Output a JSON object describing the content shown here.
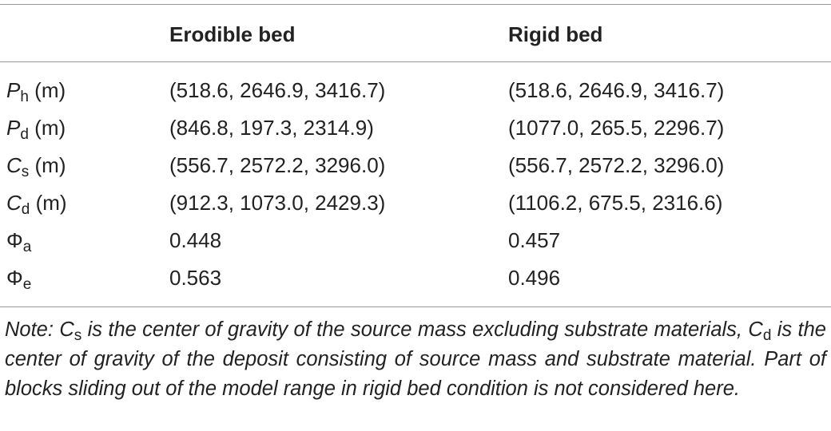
{
  "table": {
    "header": [
      "Erodible bed",
      "Rigid bed"
    ],
    "rows": [
      {
        "label": {
          "symbol": "P",
          "sub": "h",
          "unit": "(m)",
          "italic": true
        },
        "cells": [
          "(518.6, 2646.9, 3416.7)",
          "(518.6, 2646.9, 3416.7)"
        ]
      },
      {
        "label": {
          "symbol": "P",
          "sub": "d",
          "unit": "(m)",
          "italic": true
        },
        "cells": [
          "(846.8, 197.3, 2314.9)",
          "(1077.0, 265.5, 2296.7)"
        ]
      },
      {
        "label": {
          "symbol": "C",
          "sub": "s",
          "unit": "(m)",
          "italic": true
        },
        "cells": [
          "(556.7, 2572.2, 3296.0)",
          "(556.7, 2572.2, 3296.0)"
        ]
      },
      {
        "label": {
          "symbol": "C",
          "sub": "d",
          "unit": "(m)",
          "italic": true
        },
        "cells": [
          "(912.3, 1073.0, 2429.3)",
          "(1106.2, 675.5, 2316.6)"
        ]
      },
      {
        "label": {
          "symbol": "Φ",
          "sub": "a",
          "italic": false
        },
        "cells": [
          "0.448",
          "0.457"
        ]
      },
      {
        "label": {
          "symbol": "Φ",
          "sub": "e",
          "italic": false
        },
        "cells": [
          "0.563",
          "0.496"
        ]
      }
    ]
  },
  "note": [
    {
      "text": "Note: "
    },
    {
      "text": "C",
      "sub": "s"
    },
    {
      "text": " is the center of gravity of the source mass excluding substrate materials, "
    },
    {
      "text": "C",
      "sub": "d"
    },
    {
      "text": " is the center of gravity of the deposit consisting of source mass and substrate material. Part of blocks sliding out of the model range in rigid bed condition is not considered here."
    }
  ]
}
